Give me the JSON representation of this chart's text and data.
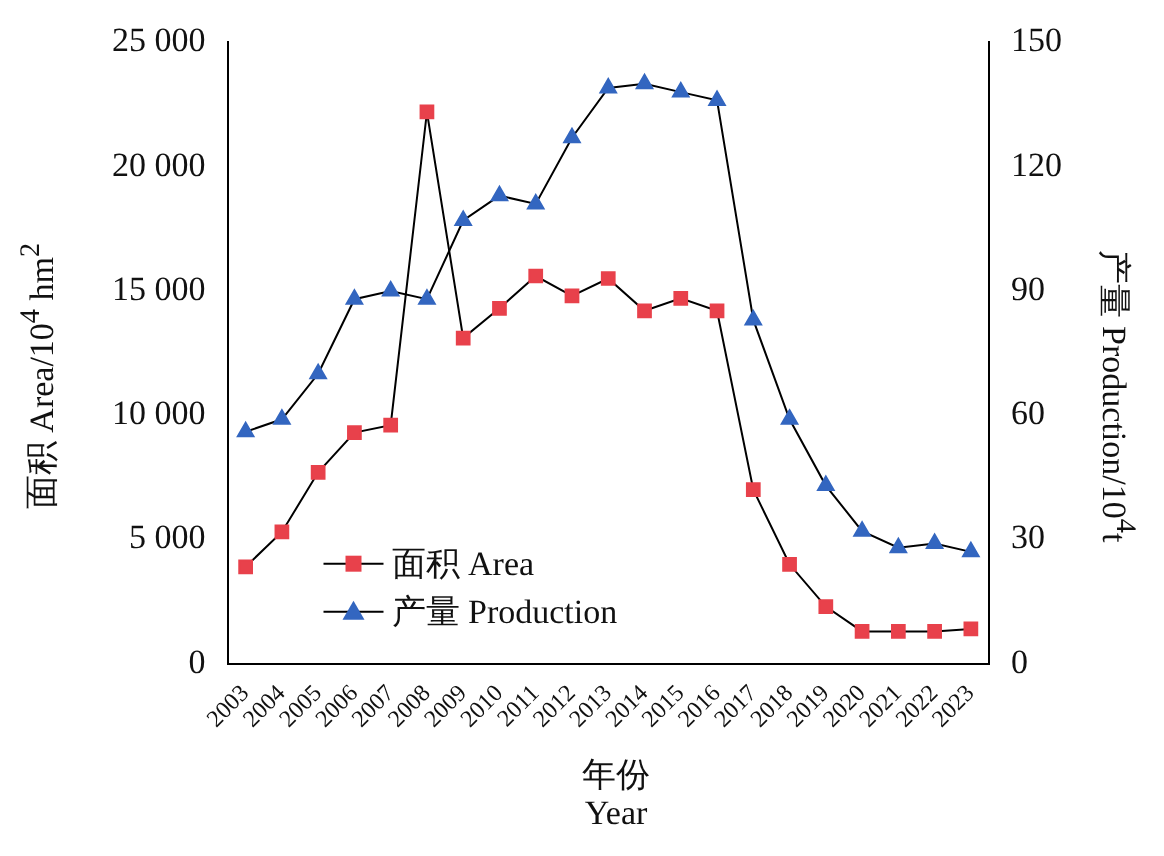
{
  "chart_data": {
    "type": "line",
    "xlabel": "年份\nYear",
    "ylabel": "面积 Area/10$^{4}$ hm$^{2}$",
    "y2label": "产量 Production/10$^{4}$t",
    "categories": [
      "2003",
      "2004",
      "2005",
      "2006",
      "2007",
      "2008",
      "2009",
      "2010",
      "2011",
      "2012",
      "2013",
      "2014",
      "2015",
      "2016",
      "2017",
      "2018",
      "2019",
      "2020",
      "2021",
      "2022",
      "2023"
    ],
    "series": [
      {
        "name": "面积 Area",
        "color": "#e8414b",
        "marker": "square",
        "values": [
          3900,
          5300,
          7700,
          9300,
          9600,
          22200,
          13100,
          14300,
          15600,
          14800,
          15500,
          14200,
          14700,
          14200,
          7000,
          4000,
          2300,
          1300,
          1300,
          1300,
          1400
        ]
      },
      {
        "name": "产量 Production",
        "color": "#3366c0",
        "marker": "triangle",
        "axis": "y2",
        "values": [
          56,
          59,
          70,
          88,
          90,
          88,
          107,
          113,
          111,
          127,
          139,
          140,
          138,
          136,
          83,
          59,
          43,
          32,
          28,
          29,
          27
        ]
      }
    ],
    "ylim": [
      0,
      25000
    ],
    "yticks": [
      {
        "value": 0,
        "label": "0"
      },
      {
        "value": 5000,
        "label": "5 000"
      },
      {
        "value": 10000,
        "label": "10 000"
      },
      {
        "value": 15000,
        "label": "15 000"
      },
      {
        "value": 20000,
        "label": "20 000"
      },
      {
        "value": 25000,
        "label": "25 000"
      }
    ],
    "y2lim": [
      0,
      150
    ],
    "y2ticks": [
      0,
      30,
      60,
      90,
      120,
      150
    ],
    "legend": "bottom left",
    "grid": false,
    "line_style": "solid"
  }
}
